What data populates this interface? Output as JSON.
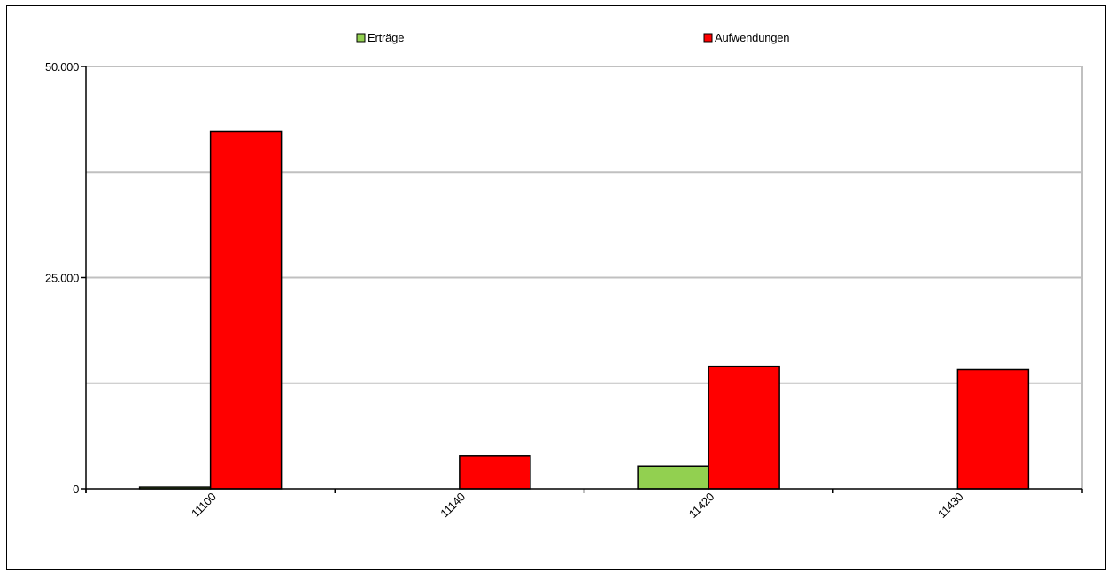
{
  "chart_data": {
    "type": "bar",
    "title": "",
    "xlabel": "",
    "ylabel": "",
    "categories": [
      "11100",
      "11140",
      "11420",
      "11430"
    ],
    "series": [
      {
        "name": "Erträge",
        "color": "#92d050",
        "values": [
          200,
          0,
          2700,
          0
        ]
      },
      {
        "name": "Aufwendungen",
        "color": "#ff0000",
        "values": [
          42300,
          3900,
          14500,
          14100
        ]
      }
    ],
    "ylim": [
      0,
      50000
    ],
    "yticks": [
      0,
      25000,
      50000
    ],
    "ytick_labels": [
      "0",
      "25.000",
      "50.000"
    ],
    "gridlines": [
      12500,
      25000,
      37500,
      50000
    ],
    "grid": true,
    "legend_position": "top",
    "bar_outline_color": "#000000",
    "gridline_color": "#c0c0c0",
    "frame_color": "#000000"
  }
}
